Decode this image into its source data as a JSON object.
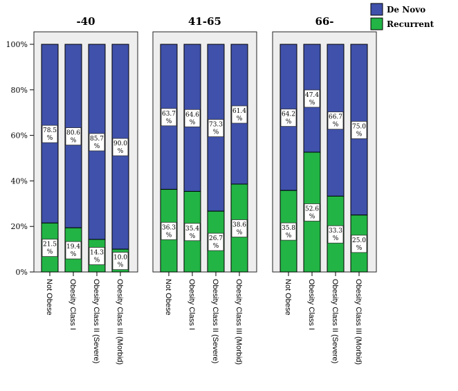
{
  "chart_data": {
    "type": "bar",
    "stacked": true,
    "percent": true,
    "legend": {
      "placement": "top-right",
      "entries": [
        {
          "name": "De Novo",
          "color": "#3f51aa"
        },
        {
          "name": "Recurrent",
          "color": "#22b445"
        }
      ]
    },
    "y_ticks": [
      "0%",
      "20%",
      "40%",
      "60%",
      "80%",
      "100%"
    ],
    "ylim": [
      0,
      100
    ],
    "grid": false,
    "categories": [
      "Not Obese",
      "Obesity Class I",
      "Obesity Class II (Severe)",
      "Obesity Class III (Morbid)"
    ],
    "panels": [
      {
        "title": "-40",
        "de_novo": [
          78.5,
          80.6,
          85.7,
          90.0
        ],
        "recurrent": [
          21.5,
          19.4,
          14.3,
          10.0
        ],
        "de_novo_labels": [
          "78.5 %",
          "80.6 %",
          "85.7 %",
          "90.0 %"
        ],
        "recurrent_labels": [
          "21.5 %",
          "19.4 %",
          "14.3 %",
          "10.0 %"
        ]
      },
      {
        "title": "41-65",
        "de_novo": [
          63.7,
          64.6,
          73.3,
          61.4
        ],
        "recurrent": [
          36.3,
          35.4,
          26.7,
          38.6
        ],
        "de_novo_labels": [
          "63.7 %",
          "64.6 %",
          "73.3 %",
          "61.4 %"
        ],
        "recurrent_labels": [
          "36.3 %",
          "35.4 %",
          "26.7 %",
          "38.6 %"
        ]
      },
      {
        "title": "66-",
        "de_novo": [
          64.2,
          47.4,
          66.7,
          75.0
        ],
        "recurrent": [
          35.8,
          52.6,
          33.3,
          25.0
        ],
        "de_novo_labels": [
          "64.2 %",
          "47.4 %",
          "66.7 %",
          "75.0 %"
        ],
        "recurrent_labels": [
          "35.8 %",
          "52.6 %",
          "33.3 %",
          "25.0 %"
        ]
      }
    ]
  }
}
